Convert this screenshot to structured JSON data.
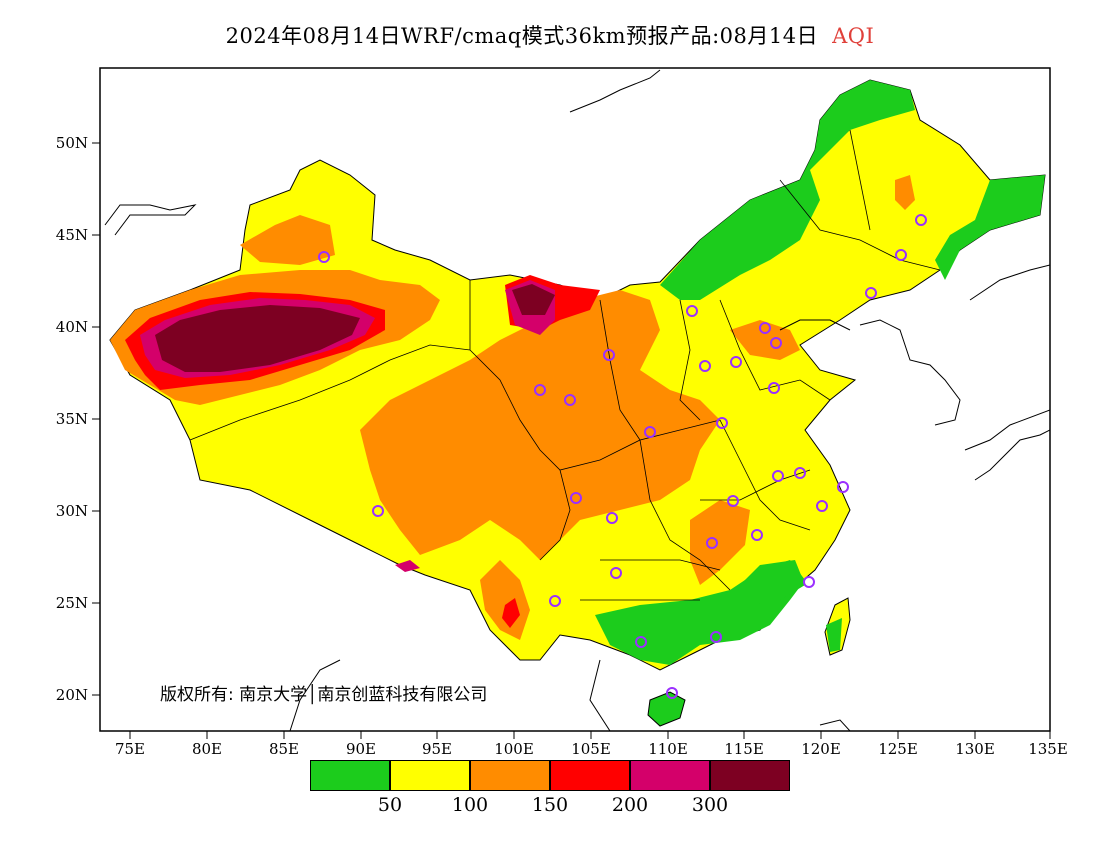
{
  "title": {
    "main": "2024年08月14日WRF/cmaq模式36km预报产品:08月14日",
    "variable": "AQI"
  },
  "axes": {
    "x_ticks": [
      "75E",
      "80E",
      "85E",
      "90E",
      "95E",
      "100E",
      "105E",
      "110E",
      "115E",
      "120E",
      "125E",
      "130E",
      "135E"
    ],
    "y_ticks": [
      "50N",
      "45N",
      "40N",
      "35N",
      "30N",
      "25N",
      "20N"
    ]
  },
  "copyright": "版权所有: 南京大学│南京创蓝科技有限公司",
  "legend": {
    "colors": [
      "#1ccc1c",
      "#ffff00",
      "#ff8c00",
      "#ff0000",
      "#d4006a",
      "#7d0022"
    ],
    "labels": [
      "50",
      "100",
      "150",
      "200",
      "300"
    ]
  },
  "map_colors": {
    "good": "#1ccc1c",
    "moderate": "#ffff00",
    "sensitive": "#ff8c00",
    "unhealthy": "#ff0000",
    "very_unhealthy": "#d4006a",
    "hazardous": "#7d0022",
    "station_marker": "#9b30ff"
  }
}
